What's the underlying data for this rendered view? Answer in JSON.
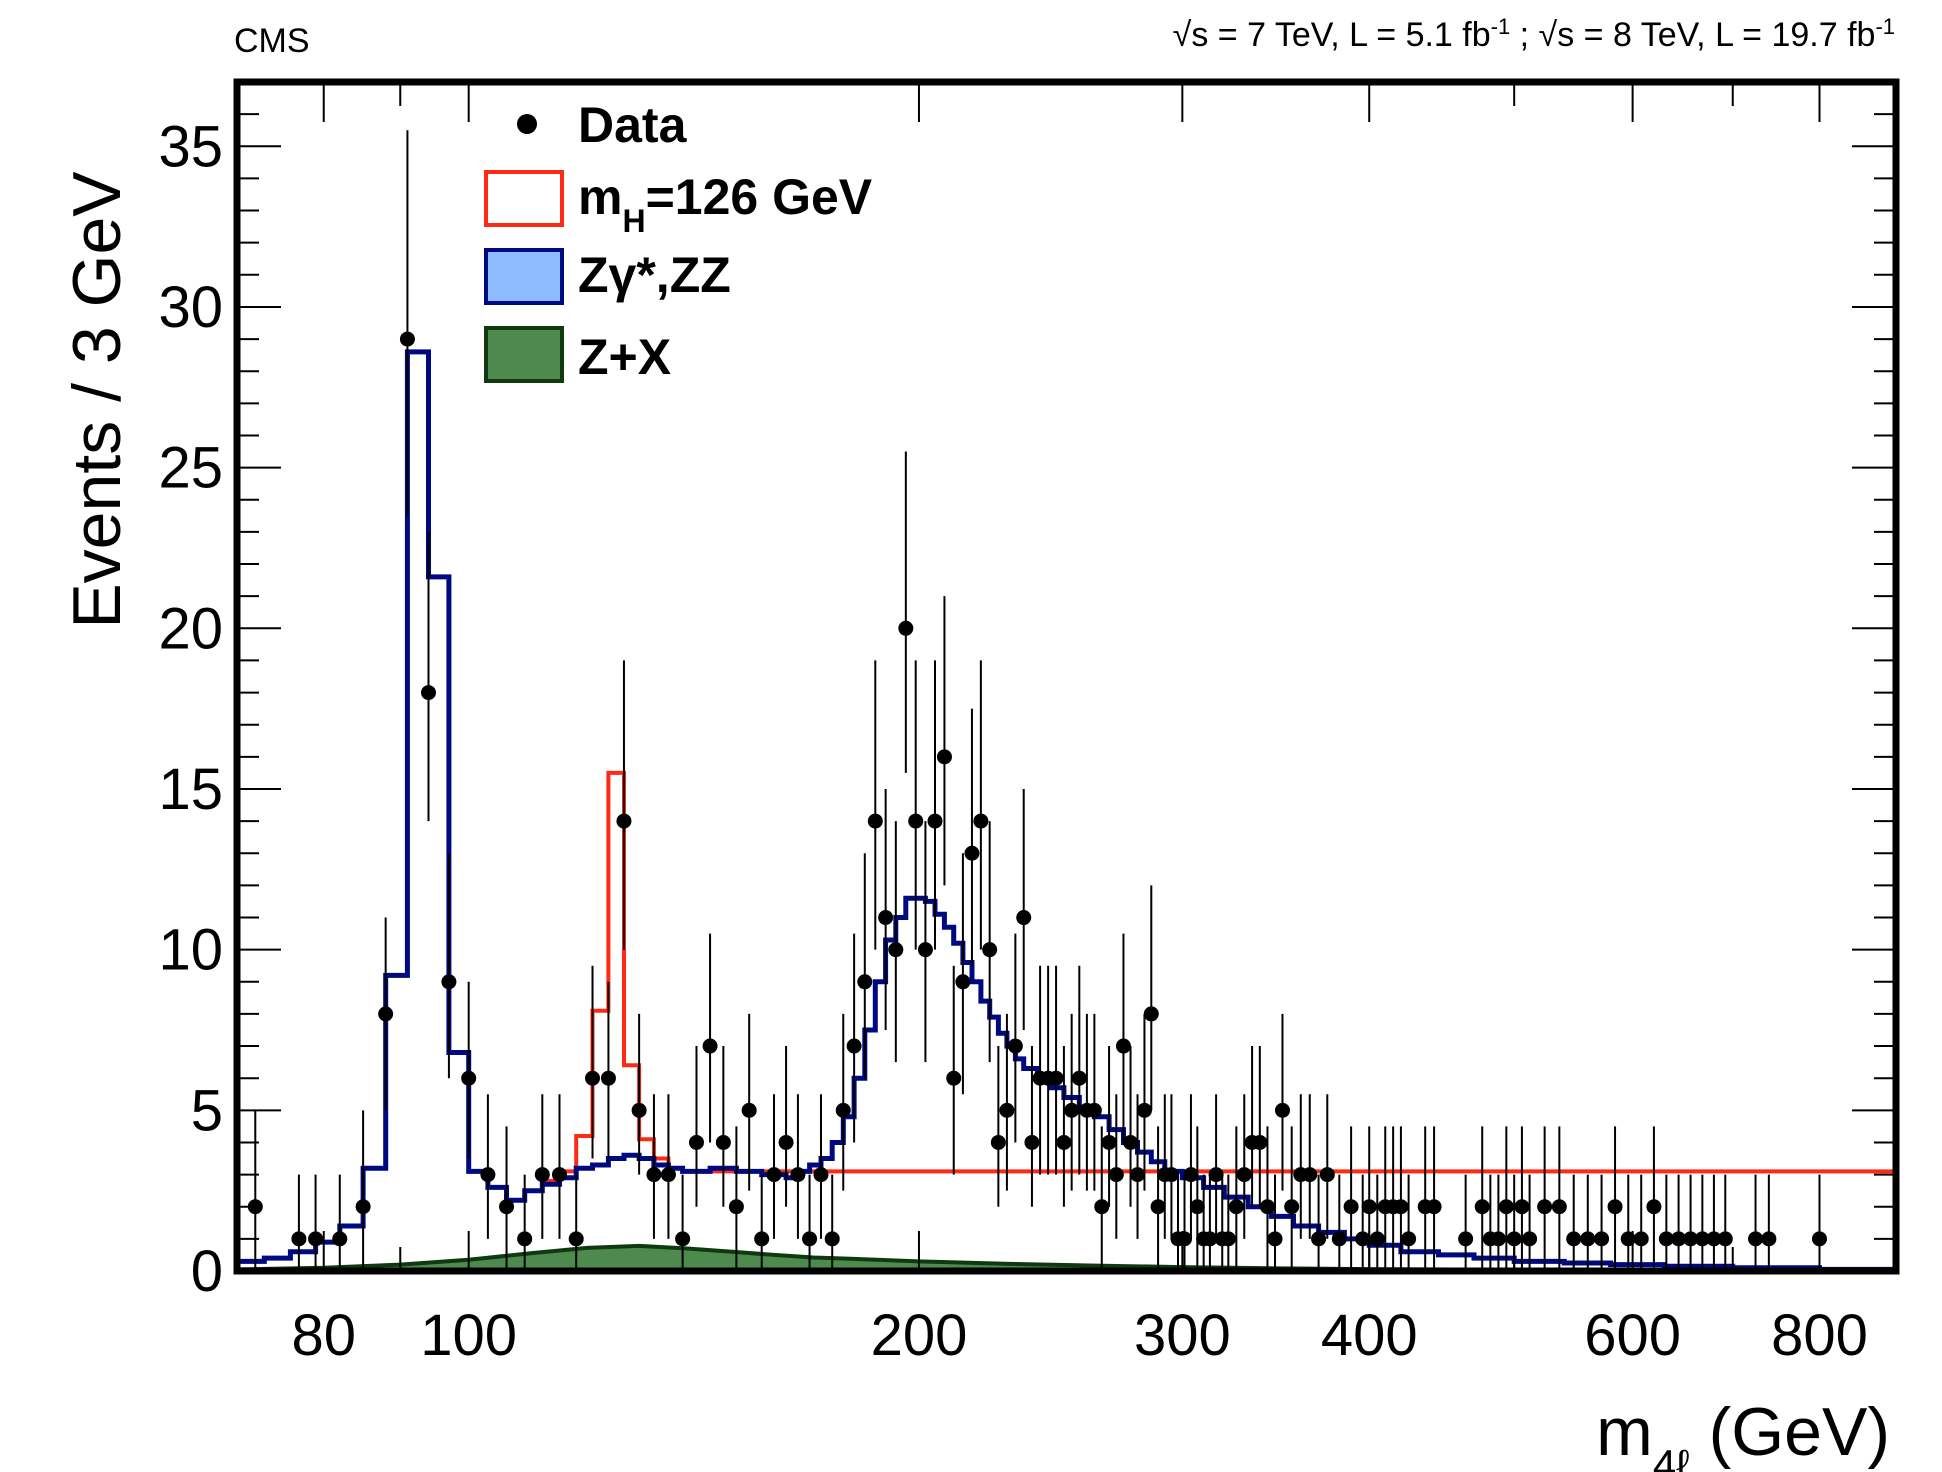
{
  "chart_data": {
    "type": "histogram",
    "experiment_label": "CMS",
    "lumi": {
      "part1_root": "√s",
      "part1_text": " = 7 TeV, L = 5.1 fb",
      "part1_exp": "-1",
      "sep": " ; ",
      "part2_root": "√s",
      "part2_text": " = 8 TeV, L = 19.7 fb",
      "part2_exp": "-1"
    },
    "ylabel": "Events / 3 GeV",
    "xlabel": {
      "main": "m",
      "sub": "4ℓ",
      "unit": " (GeV)"
    },
    "x_scale": "log",
    "xlim": [
      70,
      900
    ],
    "ylim": [
      0,
      37
    ],
    "x_ticks": [
      80,
      100,
      200,
      300,
      400,
      600,
      800
    ],
    "y_ticks": [
      0,
      5,
      10,
      15,
      20,
      25,
      30,
      35
    ],
    "legend": {
      "position": "top-left",
      "entries": [
        {
          "key": "data",
          "label": "Data"
        },
        {
          "key": "higgs",
          "label_main": "m",
          "label_sub": "H",
          "label_rest": "=126 GeV"
        },
        {
          "key": "zz",
          "label": "Zγ*,ZZ"
        },
        {
          "key": "zx",
          "label": "Z+X"
        }
      ]
    },
    "colors": {
      "zz_fill": "#8fbcff",
      "zz_line": "#000a80",
      "zx_fill": "#4e8a4e",
      "zx_line": "#0f3a0f",
      "higgs_line": "#ff2a14",
      "data": "#000000"
    },
    "series": [
      {
        "name": "Zγ*,ZZ",
        "kind": "stacked-step",
        "points": [
          [
            70,
            0.3
          ],
          [
            73,
            0.4
          ],
          [
            76,
            0.6
          ],
          [
            79,
            0.9
          ],
          [
            82,
            1.4
          ],
          [
            85,
            3.2
          ],
          [
            88,
            9.2
          ],
          [
            91,
            28.6
          ],
          [
            94,
            21.6
          ],
          [
            97,
            6.8
          ],
          [
            100,
            3.1
          ],
          [
            103,
            2.6
          ],
          [
            106,
            2.2
          ],
          [
            109,
            2.5
          ],
          [
            112,
            2.7
          ],
          [
            115,
            2.9
          ],
          [
            118,
            3.2
          ],
          [
            121,
            3.3
          ],
          [
            124,
            3.5
          ],
          [
            127,
            3.6
          ],
          [
            130,
            3.5
          ],
          [
            133,
            3.3
          ],
          [
            136,
            3.2
          ],
          [
            139,
            3.1
          ],
          [
            145,
            3.2
          ],
          [
            151,
            3.1
          ],
          [
            157,
            3.0
          ],
          [
            163,
            2.9
          ],
          [
            166,
            3.1
          ],
          [
            169,
            3.3
          ],
          [
            172,
            3.5
          ],
          [
            175,
            4.0
          ],
          [
            178,
            4.8
          ],
          [
            181,
            6.0
          ],
          [
            184,
            7.5
          ],
          [
            187,
            9.0
          ],
          [
            190,
            10.3
          ],
          [
            193,
            11.0
          ],
          [
            196,
            11.6
          ],
          [
            199,
            11.6
          ],
          [
            202,
            11.5
          ],
          [
            205,
            11.1
          ],
          [
            208,
            10.7
          ],
          [
            211,
            10.2
          ],
          [
            214,
            9.6
          ],
          [
            217,
            9.0
          ],
          [
            220,
            8.4
          ],
          [
            223,
            7.9
          ],
          [
            226,
            7.4
          ],
          [
            229,
            7.0
          ],
          [
            232,
            6.6
          ],
          [
            235,
            6.3
          ],
          [
            240,
            6.0
          ],
          [
            245,
            5.7
          ],
          [
            250,
            5.4
          ],
          [
            256,
            5.1
          ],
          [
            262,
            4.8
          ],
          [
            268,
            4.4
          ],
          [
            274,
            4.0
          ],
          [
            280,
            3.7
          ],
          [
            286,
            3.4
          ],
          [
            292,
            3.1
          ],
          [
            300,
            2.9
          ],
          [
            310,
            2.6
          ],
          [
            320,
            2.3
          ],
          [
            332,
            2.0
          ],
          [
            344,
            1.7
          ],
          [
            356,
            1.4
          ],
          [
            370,
            1.2
          ],
          [
            385,
            1.0
          ],
          [
            400,
            0.8
          ],
          [
            420,
            0.6
          ],
          [
            445,
            0.5
          ],
          [
            470,
            0.4
          ],
          [
            500,
            0.3
          ],
          [
            540,
            0.25
          ],
          [
            580,
            0.2
          ],
          [
            630,
            0.15
          ],
          [
            700,
            0.1
          ],
          [
            800,
            0.05
          ],
          [
            900,
            0.05
          ]
        ]
      },
      {
        "name": "Z+X",
        "kind": "smooth-area",
        "points": [
          [
            70,
            0.05
          ],
          [
            80,
            0.1
          ],
          [
            90,
            0.2
          ],
          [
            100,
            0.35
          ],
          [
            110,
            0.55
          ],
          [
            120,
            0.72
          ],
          [
            130,
            0.78
          ],
          [
            140,
            0.7
          ],
          [
            150,
            0.6
          ],
          [
            160,
            0.5
          ],
          [
            170,
            0.42
          ],
          [
            180,
            0.38
          ],
          [
            200,
            0.3
          ],
          [
            230,
            0.22
          ],
          [
            260,
            0.17
          ],
          [
            300,
            0.12
          ],
          [
            350,
            0.08
          ],
          [
            400,
            0.06
          ],
          [
            500,
            0.04
          ],
          [
            600,
            0.03
          ],
          [
            900,
            0.02
          ]
        ]
      },
      {
        "name": "m_H=126 GeV",
        "kind": "step-outline",
        "points": [
          [
            109,
            2.5
          ],
          [
            112,
            2.8
          ],
          [
            115,
            3.1
          ],
          [
            118,
            4.2
          ],
          [
            121,
            8.1
          ],
          [
            124,
            15.5
          ],
          [
            127,
            6.4
          ],
          [
            130,
            4.1
          ],
          [
            133,
            3.5
          ],
          [
            136,
            3.2
          ],
          [
            139,
            3.1
          ]
        ]
      },
      {
        "name": "Data",
        "kind": "points",
        "points": [
          [
            72,
            2,
            3,
            2
          ],
          [
            77,
            1,
            2,
            1
          ],
          [
            79,
            1,
            2,
            1
          ],
          [
            82,
            1,
            2,
            1
          ],
          [
            85,
            2,
            3,
            2
          ],
          [
            88,
            8,
            3,
            3
          ],
          [
            91,
            29,
            6.5,
            5.5
          ],
          [
            94,
            18,
            5,
            4
          ],
          [
            97,
            9,
            4,
            3
          ],
          [
            100,
            6,
            3,
            2.5
          ],
          [
            103,
            3,
            2.5,
            2
          ],
          [
            106,
            2,
            2.5,
            2
          ],
          [
            109,
            1,
            2,
            1
          ],
          [
            112,
            3,
            2.5,
            2
          ],
          [
            115,
            3,
            2.5,
            2
          ],
          [
            118,
            1,
            2,
            1
          ],
          [
            121,
            6,
            3.5,
            2.5
          ],
          [
            124,
            6,
            3,
            2.5
          ],
          [
            127,
            14,
            5,
            4
          ],
          [
            130,
            5,
            3,
            2
          ],
          [
            133,
            3,
            2.5,
            2
          ],
          [
            136,
            3,
            2.5,
            2
          ],
          [
            139,
            1,
            2,
            1
          ],
          [
            142,
            4,
            3,
            2
          ],
          [
            145,
            7,
            3.5,
            3
          ],
          [
            148,
            4,
            3,
            2
          ],
          [
            151,
            2,
            2.5,
            2
          ],
          [
            154,
            5,
            3,
            2.5
          ],
          [
            157,
            1,
            2,
            1
          ],
          [
            160,
            3,
            2.5,
            2
          ],
          [
            163,
            4,
            3,
            2
          ],
          [
            166,
            3,
            2.5,
            2
          ],
          [
            169,
            1,
            2,
            1
          ],
          [
            172,
            3,
            2.5,
            2
          ],
          [
            175,
            1,
            2,
            1
          ],
          [
            178,
            5,
            3,
            2.5
          ],
          [
            181,
            7,
            3.5,
            3
          ],
          [
            184,
            9,
            4,
            3
          ],
          [
            187,
            14,
            5,
            4
          ],
          [
            190,
            11,
            4,
            3.5
          ],
          [
            193,
            10,
            4,
            3.5
          ],
          [
            196,
            20,
            5.5,
            4.5
          ],
          [
            199,
            14,
            5,
            4
          ],
          [
            202,
            10,
            4,
            3.5
          ],
          [
            205,
            14,
            5,
            4
          ],
          [
            208,
            16,
            5,
            4
          ],
          [
            211,
            6,
            3.5,
            3
          ],
          [
            214,
            9,
            4,
            3.5
          ],
          [
            217,
            13,
            4.5,
            3.5
          ],
          [
            220,
            14,
            5,
            4
          ],
          [
            223,
            10,
            4,
            3.5
          ],
          [
            226,
            4,
            3,
            2
          ],
          [
            229,
            5,
            3,
            2.5
          ],
          [
            232,
            7,
            3.5,
            3
          ],
          [
            235,
            11,
            4,
            3.5
          ],
          [
            238,
            4,
            3,
            2
          ],
          [
            241,
            6,
            3.5,
            3
          ],
          [
            244,
            6,
            3.5,
            3
          ],
          [
            247,
            6,
            3.5,
            3
          ],
          [
            250,
            4,
            3,
            2
          ],
          [
            253,
            5,
            3,
            2.5
          ],
          [
            256,
            6,
            3.5,
            3
          ],
          [
            259,
            5,
            3,
            2.5
          ],
          [
            262,
            5,
            3,
            2.5
          ],
          [
            265,
            2,
            2.5,
            2
          ],
          [
            268,
            4,
            3,
            2
          ],
          [
            271,
            3,
            2.5,
            2
          ],
          [
            274,
            7,
            3.5,
            3
          ],
          [
            277,
            4,
            3,
            2
          ],
          [
            280,
            3,
            2.5,
            2
          ],
          [
            283,
            5,
            3,
            2.5
          ],
          [
            286,
            8,
            4,
            3
          ],
          [
            289,
            2,
            2.5,
            2
          ],
          [
            292,
            3,
            2.5,
            2
          ],
          [
            295,
            3,
            2.5,
            2
          ],
          [
            298,
            1,
            2,
            1
          ],
          [
            301,
            1,
            2,
            1
          ],
          [
            304,
            3,
            2.5,
            2
          ],
          [
            307,
            2,
            2.5,
            2
          ],
          [
            310,
            1,
            2,
            1
          ],
          [
            313,
            1,
            2,
            1
          ],
          [
            316,
            3,
            2.5,
            2
          ],
          [
            319,
            1,
            2,
            1
          ],
          [
            322,
            1,
            2,
            1
          ],
          [
            326,
            2,
            2.5,
            2
          ],
          [
            330,
            3,
            2.5,
            2
          ],
          [
            334,
            4,
            3,
            2
          ],
          [
            338,
            4,
            3,
            2
          ],
          [
            342,
            2,
            2.5,
            2
          ],
          [
            346,
            1,
            2,
            1
          ],
          [
            350,
            5,
            3,
            2.5
          ],
          [
            355,
            2,
            2.5,
            2
          ],
          [
            360,
            3,
            2.5,
            2
          ],
          [
            365,
            3,
            2.5,
            2
          ],
          [
            370,
            1,
            2,
            1
          ],
          [
            375,
            3,
            2.5,
            2
          ],
          [
            382,
            1,
            2,
            1
          ],
          [
            389,
            2,
            2.5,
            2
          ],
          [
            396,
            1,
            2,
            1
          ],
          [
            400,
            2,
            2.5,
            2
          ],
          [
            405,
            1,
            2,
            1
          ],
          [
            410,
            2,
            2.5,
            2
          ],
          [
            415,
            2,
            2.5,
            2
          ],
          [
            420,
            2,
            2.5,
            2
          ],
          [
            425,
            1,
            2,
            1
          ],
          [
            436,
            2,
            2.5,
            2
          ],
          [
            442,
            2,
            2.5,
            2
          ],
          [
            464,
            1,
            2,
            1
          ],
          [
            476,
            2,
            2.5,
            2
          ],
          [
            482,
            1,
            2,
            1
          ],
          [
            488,
            1,
            2,
            1
          ],
          [
            494,
            2,
            2.5,
            2
          ],
          [
            500,
            1,
            2,
            1
          ],
          [
            506,
            2,
            2.5,
            2
          ],
          [
            512,
            1,
            2,
            1
          ],
          [
            524,
            2,
            2.5,
            2
          ],
          [
            536,
            2,
            2.5,
            2
          ],
          [
            548,
            1,
            2,
            1
          ],
          [
            560,
            1,
            2,
            1
          ],
          [
            572,
            1,
            2,
            1
          ],
          [
            584,
            2,
            2.5,
            2
          ],
          [
            596,
            1,
            2,
            1
          ],
          [
            608,
            1,
            2,
            1
          ],
          [
            620,
            2,
            2.5,
            2
          ],
          [
            632,
            1,
            2,
            1
          ],
          [
            644,
            1,
            2,
            1
          ],
          [
            656,
            1,
            2,
            1
          ],
          [
            668,
            1,
            2,
            1
          ],
          [
            680,
            1,
            2,
            1
          ],
          [
            692,
            1,
            2,
            1
          ],
          [
            725,
            1,
            2,
            1
          ],
          [
            740,
            1,
            2,
            1
          ],
          [
            800,
            1,
            2,
            1
          ]
        ]
      }
    ]
  }
}
